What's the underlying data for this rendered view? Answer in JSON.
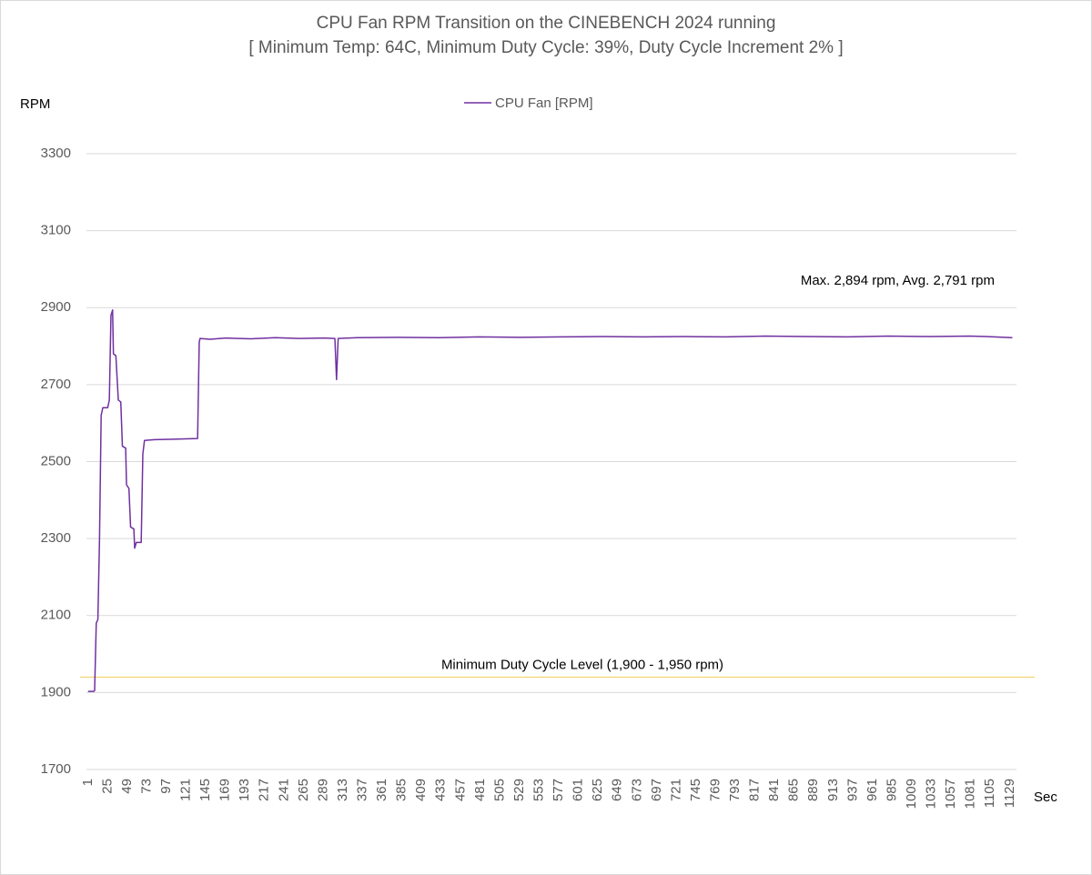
{
  "chart_data": {
    "type": "line",
    "title": "CPU Fan RPM Transition on the CINEBENCH 2024 running",
    "subtitle": "[ Minimum Temp: 64C, Minimum Duty Cycle: 39%, Duty Cycle Increment 2% ]",
    "y_label": "RPM",
    "x_label": "Sec",
    "annotation": "Max. 2,894 rpm, Avg. 2,791 rpm",
    "reference_line": {
      "value": 1940,
      "label": "Minimum Duty Cycle Level (1,900 - 1,950 rpm)",
      "color": "#f2d36b"
    },
    "x": [
      1,
      8,
      9,
      11,
      13,
      15,
      17,
      19,
      25,
      27,
      29,
      31,
      32,
      35,
      38,
      41,
      43,
      47,
      48,
      51,
      53,
      57,
      58,
      60,
      66,
      68,
      70,
      82,
      100,
      120,
      135,
      137,
      138,
      150,
      170,
      200,
      230,
      260,
      290,
      303,
      305,
      307,
      330,
      380,
      430,
      480,
      530,
      580,
      630,
      680,
      730,
      780,
      830,
      880,
      930,
      980,
      1030,
      1080,
      1100,
      1132
    ],
    "series": [
      {
        "name": "CPU Fan [RPM]",
        "color": "#7030a0",
        "values": [
          1903,
          1903,
          1905,
          2080,
          2090,
          2300,
          2620,
          2640,
          2640,
          2660,
          2880,
          2894,
          2780,
          2775,
          2660,
          2655,
          2540,
          2535,
          2440,
          2430,
          2330,
          2325,
          2275,
          2290,
          2290,
          2520,
          2555,
          2557,
          2558,
          2559,
          2560,
          2810,
          2820,
          2818,
          2821,
          2819,
          2822,
          2820,
          2821,
          2820,
          2713,
          2820,
          2822,
          2823,
          2822,
          2824,
          2823,
          2824,
          2825,
          2824,
          2825,
          2824,
          2826,
          2825,
          2824,
          2826,
          2825,
          2826,
          2825,
          2822
        ]
      }
    ],
    "xlim": [
      -1,
      1137
    ],
    "xticks": [
      1,
      25,
      49,
      73,
      97,
      121,
      145,
      169,
      193,
      217,
      241,
      265,
      289,
      313,
      337,
      361,
      385,
      409,
      433,
      457,
      481,
      505,
      529,
      553,
      577,
      601,
      625,
      649,
      673,
      697,
      721,
      745,
      769,
      793,
      817,
      841,
      865,
      889,
      913,
      937,
      961,
      985,
      1009,
      1033,
      1057,
      1081,
      1105,
      1129
    ],
    "ylim": [
      1700,
      3300
    ],
    "yticks": [
      1700,
      1900,
      2100,
      2300,
      2500,
      2700,
      2900,
      3100,
      3300
    ],
    "grid": true
  }
}
